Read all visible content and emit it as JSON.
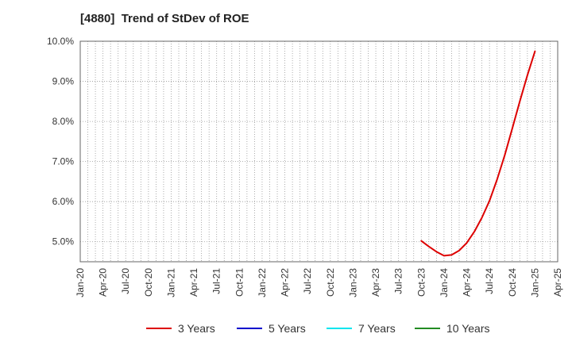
{
  "chart_data": {
    "type": "line",
    "title": "[4880]  Trend of StDev of ROE",
    "xlabel": "",
    "ylabel": "",
    "x_ticks": [
      "Jan-20",
      "Apr-20",
      "Jul-20",
      "Oct-20",
      "Jan-21",
      "Apr-21",
      "Jul-21",
      "Oct-21",
      "Jan-22",
      "Apr-22",
      "Jul-22",
      "Oct-22",
      "Jan-23",
      "Apr-23",
      "Jul-23",
      "Oct-23",
      "Jan-24",
      "Apr-24",
      "Jul-24",
      "Oct-24",
      "Jan-25",
      "Apr-25"
    ],
    "y_ticks": [
      "5.0%",
      "6.0%",
      "7.0%",
      "8.0%",
      "9.0%",
      "10.0%"
    ],
    "ylim": [
      4.5,
      10.0
    ],
    "y_tick_values": [
      5.0,
      6.0,
      7.0,
      8.0,
      9.0,
      10.0
    ],
    "grid": true,
    "legend_position": "bottom",
    "series": [
      {
        "name": "3 Years",
        "color": "#dd0000",
        "points": [
          [
            "Oct-23",
            5.02
          ],
          [
            "Nov-23",
            4.88
          ],
          [
            "Dec-23",
            4.75
          ],
          [
            "Jan-24",
            4.65
          ],
          [
            "Feb-24",
            4.67
          ],
          [
            "Mar-24",
            4.78
          ],
          [
            "Apr-24",
            4.97
          ],
          [
            "May-24",
            5.25
          ],
          [
            "Jun-24",
            5.6
          ],
          [
            "Jul-24",
            6.02
          ],
          [
            "Aug-24",
            6.55
          ],
          [
            "Sep-24",
            7.15
          ],
          [
            "Oct-24",
            7.82
          ],
          [
            "Nov-24",
            8.5
          ],
          [
            "Dec-24",
            9.15
          ],
          [
            "Jan-25",
            9.75
          ]
        ]
      },
      {
        "name": "5 Years",
        "color": "#0000cc",
        "points": []
      },
      {
        "name": "7 Years",
        "color": "#00e5ee",
        "points": []
      },
      {
        "name": "10 Years",
        "color": "#228b22",
        "points": []
      }
    ]
  }
}
